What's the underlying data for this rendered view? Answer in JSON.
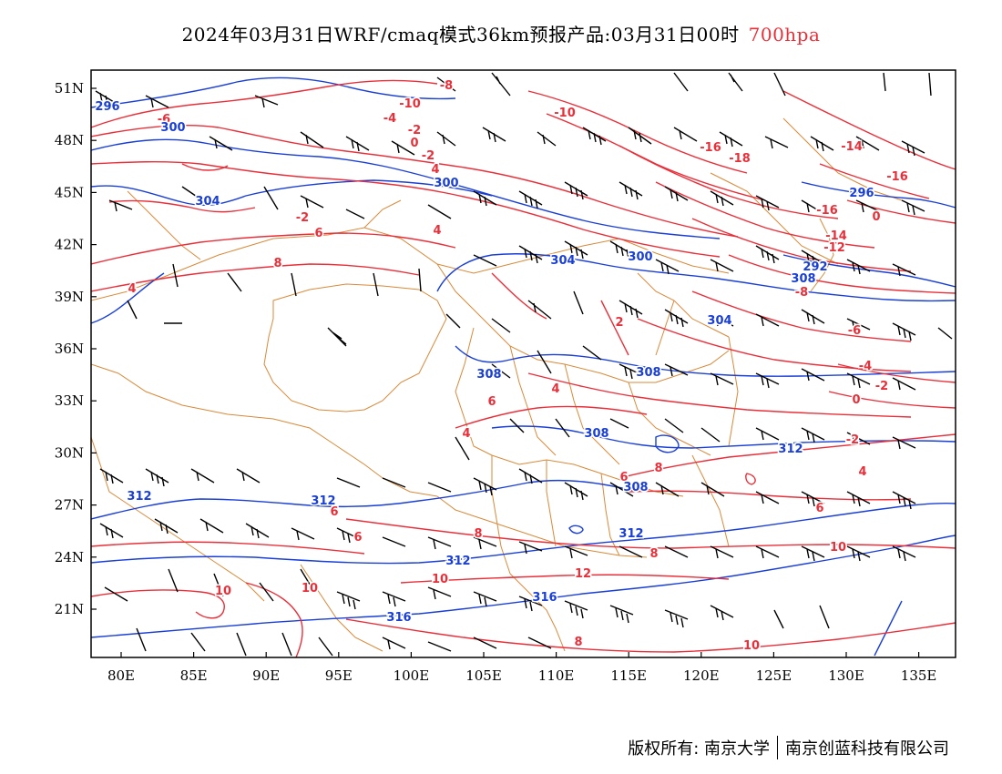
{
  "title": {
    "main": "2024年03月31日WRF/cmaq模式36km预报产品:03月31日00时",
    "level": "700hpa"
  },
  "map": {
    "lon_ticks": [
      "80E",
      "85E",
      "90E",
      "95E",
      "100E",
      "105E",
      "110E",
      "115E",
      "120E",
      "125E",
      "130E",
      "135E"
    ],
    "lat_ticks": [
      "51N",
      "48N",
      "45N",
      "42N",
      "39N",
      "36N",
      "33N",
      "30N",
      "27N",
      "24N",
      "21N"
    ],
    "temperature_labels": [
      "-8",
      "-6",
      "-10",
      "-4",
      "-10",
      "-2",
      "0",
      "-2",
      "4",
      "-16",
      "-18",
      "-14",
      "-16",
      "-16",
      "-14",
      "-12",
      "-8",
      "-6",
      "-4",
      "-2",
      "0",
      "-2",
      "0",
      "-2",
      "4",
      "6",
      "8",
      "4",
      "2",
      "4",
      "6",
      "4",
      "6",
      "8",
      "6",
      "8",
      "6",
      "8",
      "10",
      "10",
      "12",
      "10",
      "10",
      "10",
      "8",
      "6",
      "4"
    ],
    "height_labels": [
      "296",
      "300",
      "304",
      "300",
      "304",
      "300",
      "304",
      "308",
      "308",
      "308",
      "312",
      "312",
      "312",
      "308",
      "312",
      "316",
      "316",
      "312",
      "296",
      "292",
      "308"
    ],
    "colors": {
      "temperature": "#e8303a",
      "height": "#1a3fd6",
      "border": "#d88a3a",
      "barb": "#000000"
    }
  },
  "footer": {
    "copyright": "版权所有: 南京大学",
    "company": "南京创蓝科技有限公司"
  }
}
